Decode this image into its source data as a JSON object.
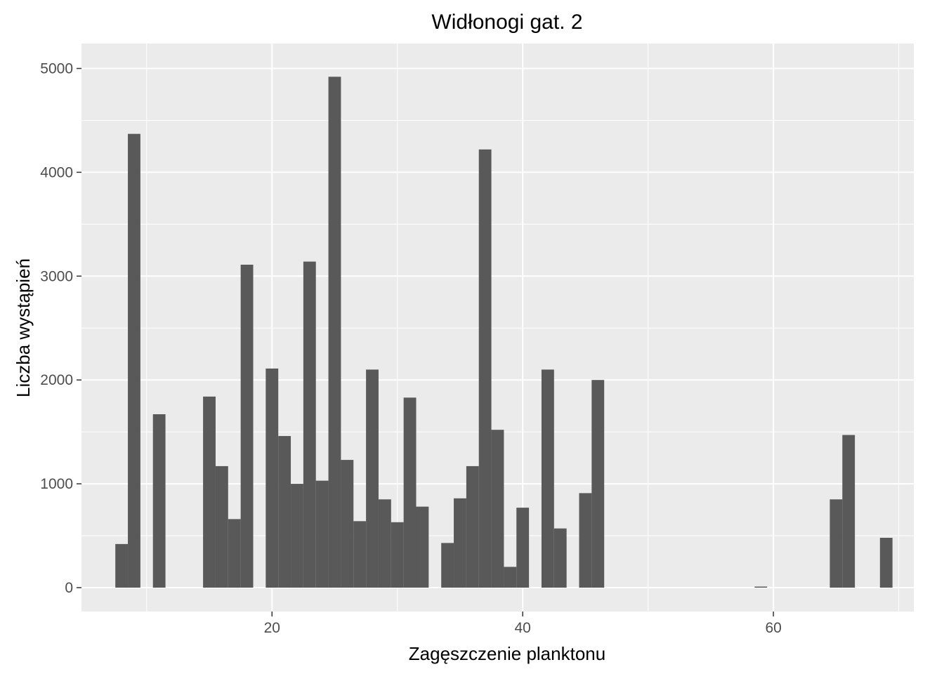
{
  "chart_data": {
    "type": "bar",
    "title": "Widłonogi gat. 2",
    "xlabel": "Zagęszczenie planktonu",
    "ylabel": "Liczba wystąpień",
    "xlim": [
      4.8,
      71.2
    ],
    "ylim": [
      -230,
      5240
    ],
    "x_ticks": [
      20,
      40,
      60
    ],
    "y_ticks": [
      0,
      1000,
      2000,
      3000,
      4000,
      5000
    ],
    "x_tick_labels": [
      "20",
      "40",
      "60"
    ],
    "y_tick_labels": [
      "0",
      "1000",
      "2000",
      "3000",
      "4000",
      "5000"
    ],
    "bin_width": 1,
    "bins": [
      {
        "x": 8,
        "count": 420
      },
      {
        "x": 9,
        "count": 4370
      },
      {
        "x": 11,
        "count": 1670
      },
      {
        "x": 15,
        "count": 1840
      },
      {
        "x": 16,
        "count": 1170
      },
      {
        "x": 17,
        "count": 660
      },
      {
        "x": 18,
        "count": 3110
      },
      {
        "x": 20,
        "count": 2110
      },
      {
        "x": 21,
        "count": 1460
      },
      {
        "x": 22,
        "count": 1000
      },
      {
        "x": 23,
        "count": 3140
      },
      {
        "x": 24,
        "count": 1030
      },
      {
        "x": 25,
        "count": 4920
      },
      {
        "x": 26,
        "count": 1230
      },
      {
        "x": 27,
        "count": 640
      },
      {
        "x": 28,
        "count": 2100
      },
      {
        "x": 29,
        "count": 850
      },
      {
        "x": 30,
        "count": 630
      },
      {
        "x": 31,
        "count": 1830
      },
      {
        "x": 32,
        "count": 780
      },
      {
        "x": 34,
        "count": 430
      },
      {
        "x": 35,
        "count": 860
      },
      {
        "x": 36,
        "count": 1170
      },
      {
        "x": 37,
        "count": 4220
      },
      {
        "x": 38,
        "count": 1520
      },
      {
        "x": 39,
        "count": 200
      },
      {
        "x": 40,
        "count": 770
      },
      {
        "x": 42,
        "count": 2100
      },
      {
        "x": 43,
        "count": 570
      },
      {
        "x": 45,
        "count": 910
      },
      {
        "x": 46,
        "count": 2000
      },
      {
        "x": 59,
        "count": 10
      },
      {
        "x": 65,
        "count": 850
      },
      {
        "x": 66,
        "count": 1470
      },
      {
        "x": 69,
        "count": 480
      }
    ],
    "grid": true,
    "legend": "none",
    "colors": {
      "panel": "#ebebeb",
      "grid_major": "#ffffff",
      "bar": "#595959",
      "tick": "#333333"
    }
  }
}
